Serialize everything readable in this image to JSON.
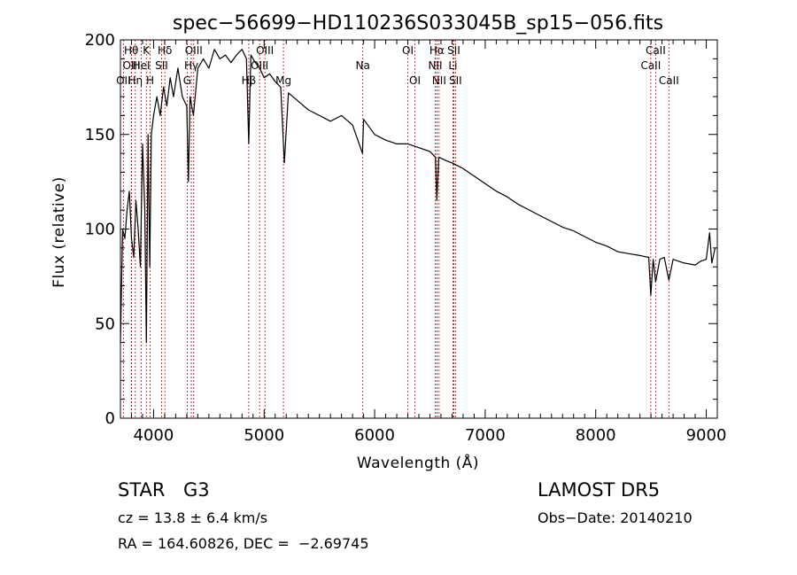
{
  "chart_data": {
    "type": "line",
    "title": "spec−56699−HD110236S033045B_sp15−056.fits",
    "xlabel": "Wavelength (Å)",
    "ylabel": "Flux (relative)",
    "xlim": [
      3700,
      9100
    ],
    "ylim": [
      0,
      200
    ],
    "xticks": [
      4000,
      5000,
      6000,
      7000,
      8000,
      9000
    ],
    "yticks": [
      0,
      50,
      100,
      150,
      200
    ],
    "grid": false,
    "series": [
      {
        "x": [
          3700,
          3720,
          3740,
          3760,
          3780,
          3800,
          3820,
          3840,
          3860,
          3880,
          3900,
          3920,
          3935,
          3950,
          3965,
          3980,
          4000,
          4030,
          4060,
          4090,
          4120,
          4150,
          4180,
          4220,
          4260,
          4300,
          4315,
          4330,
          4360,
          4400,
          4450,
          4500,
          4550,
          4600,
          4650,
          4700,
          4750,
          4800,
          4840,
          4861,
          4880,
          4920,
          4960,
          5000,
          5050,
          5100,
          5150,
          5183,
          5220,
          5300,
          5400,
          5500,
          5600,
          5700,
          5800,
          5890,
          5900,
          6000,
          6100,
          6200,
          6300,
          6400,
          6500,
          6550,
          6563,
          6580,
          6650,
          6700,
          6800,
          6900,
          7000,
          7100,
          7200,
          7300,
          7400,
          7500,
          7600,
          7700,
          7800,
          7900,
          8000,
          8100,
          8200,
          8300,
          8400,
          8480,
          8498,
          8520,
          8542,
          8580,
          8620,
          8662,
          8700,
          8800,
          8900,
          8950,
          9000,
          9030,
          9050,
          9080
        ],
        "y": [
          40,
          100,
          95,
          110,
          120,
          95,
          85,
          115,
          100,
          80,
          145,
          110,
          40,
          150,
          80,
          150,
          160,
          170,
          160,
          175,
          165,
          180,
          170,
          185,
          170,
          165,
          125,
          170,
          160,
          185,
          190,
          185,
          195,
          190,
          192,
          188,
          192,
          195,
          190,
          145,
          192,
          188,
          185,
          180,
          182,
          178,
          175,
          135,
          172,
          168,
          163,
          160,
          157,
          160,
          155,
          140,
          158,
          150,
          147,
          145,
          145,
          143,
          141,
          138,
          115,
          138,
          136,
          135,
          132,
          128,
          124,
          120,
          117,
          113,
          110,
          107,
          104,
          101,
          99,
          96,
          93,
          91,
          88,
          87,
          86,
          85,
          65,
          84,
          72,
          84,
          85,
          73,
          84,
          82,
          81,
          83,
          84,
          98,
          82,
          90
        ]
      }
    ],
    "spectral_lines": [
      {
        "label": "OII",
        "x": 3727,
        "row": 3
      },
      {
        "label": "Hθ",
        "x": 3798,
        "row": 1
      },
      {
        "label": "OIII",
        "x": 3800,
        "row": 2
      },
      {
        "label": "Hη",
        "x": 3835,
        "row": 3
      },
      {
        "label": "HeI",
        "x": 3889,
        "row": 2
      },
      {
        "label": "K",
        "x": 3934,
        "row": 1
      },
      {
        "label": "H",
        "x": 3969,
        "row": 3
      },
      {
        "label": "SII",
        "x": 4072,
        "row": 2
      },
      {
        "label": "Hδ",
        "x": 4102,
        "row": 1
      },
      {
        "label": "G",
        "x": 4304,
        "row": 3
      },
      {
        "label": "Hγ",
        "x": 4341,
        "row": 2
      },
      {
        "label": "OIII",
        "x": 4363,
        "row": 1
      },
      {
        "label": "Hβ",
        "x": 4861,
        "row": 3
      },
      {
        "label": "OIII",
        "x": 4959,
        "row": 2
      },
      {
        "label": "OIII",
        "x": 5007,
        "row": 1
      },
      {
        "label": "Mg",
        "x": 5175,
        "row": 3
      },
      {
        "label": "Na",
        "x": 5893,
        "row": 2
      },
      {
        "label": "OI",
        "x": 6300,
        "row": 1
      },
      {
        "label": "OI",
        "x": 6364,
        "row": 3
      },
      {
        "label": "NII",
        "x": 6548,
        "row": 2
      },
      {
        "label": "Hα",
        "x": 6563,
        "row": 1
      },
      {
        "label": "NII",
        "x": 6583,
        "row": 3
      },
      {
        "label": "Li",
        "x": 6708,
        "row": 2
      },
      {
        "label": "SII",
        "x": 6716,
        "row": 1
      },
      {
        "label": "SII",
        "x": 6731,
        "row": 3
      },
      {
        "label": "CaII",
        "x": 8498,
        "row": 2
      },
      {
        "label": "CaII",
        "x": 8542,
        "row": 1
      },
      {
        "label": "CaII",
        "x": 8662,
        "row": 3
      }
    ]
  },
  "info": {
    "class_label": "STAR",
    "subclass": "G3",
    "survey": "LAMOST DR5",
    "cz_text": "cz = 13.8 ± 6.4 km/s",
    "obs_date": "Obs−Date: 20140210",
    "coords": "RA = 164.60826, DEC =  −2.69745"
  },
  "colors": {
    "line": "#000000",
    "marker_lines": "#cc0000",
    "background": "#ffffff"
  }
}
